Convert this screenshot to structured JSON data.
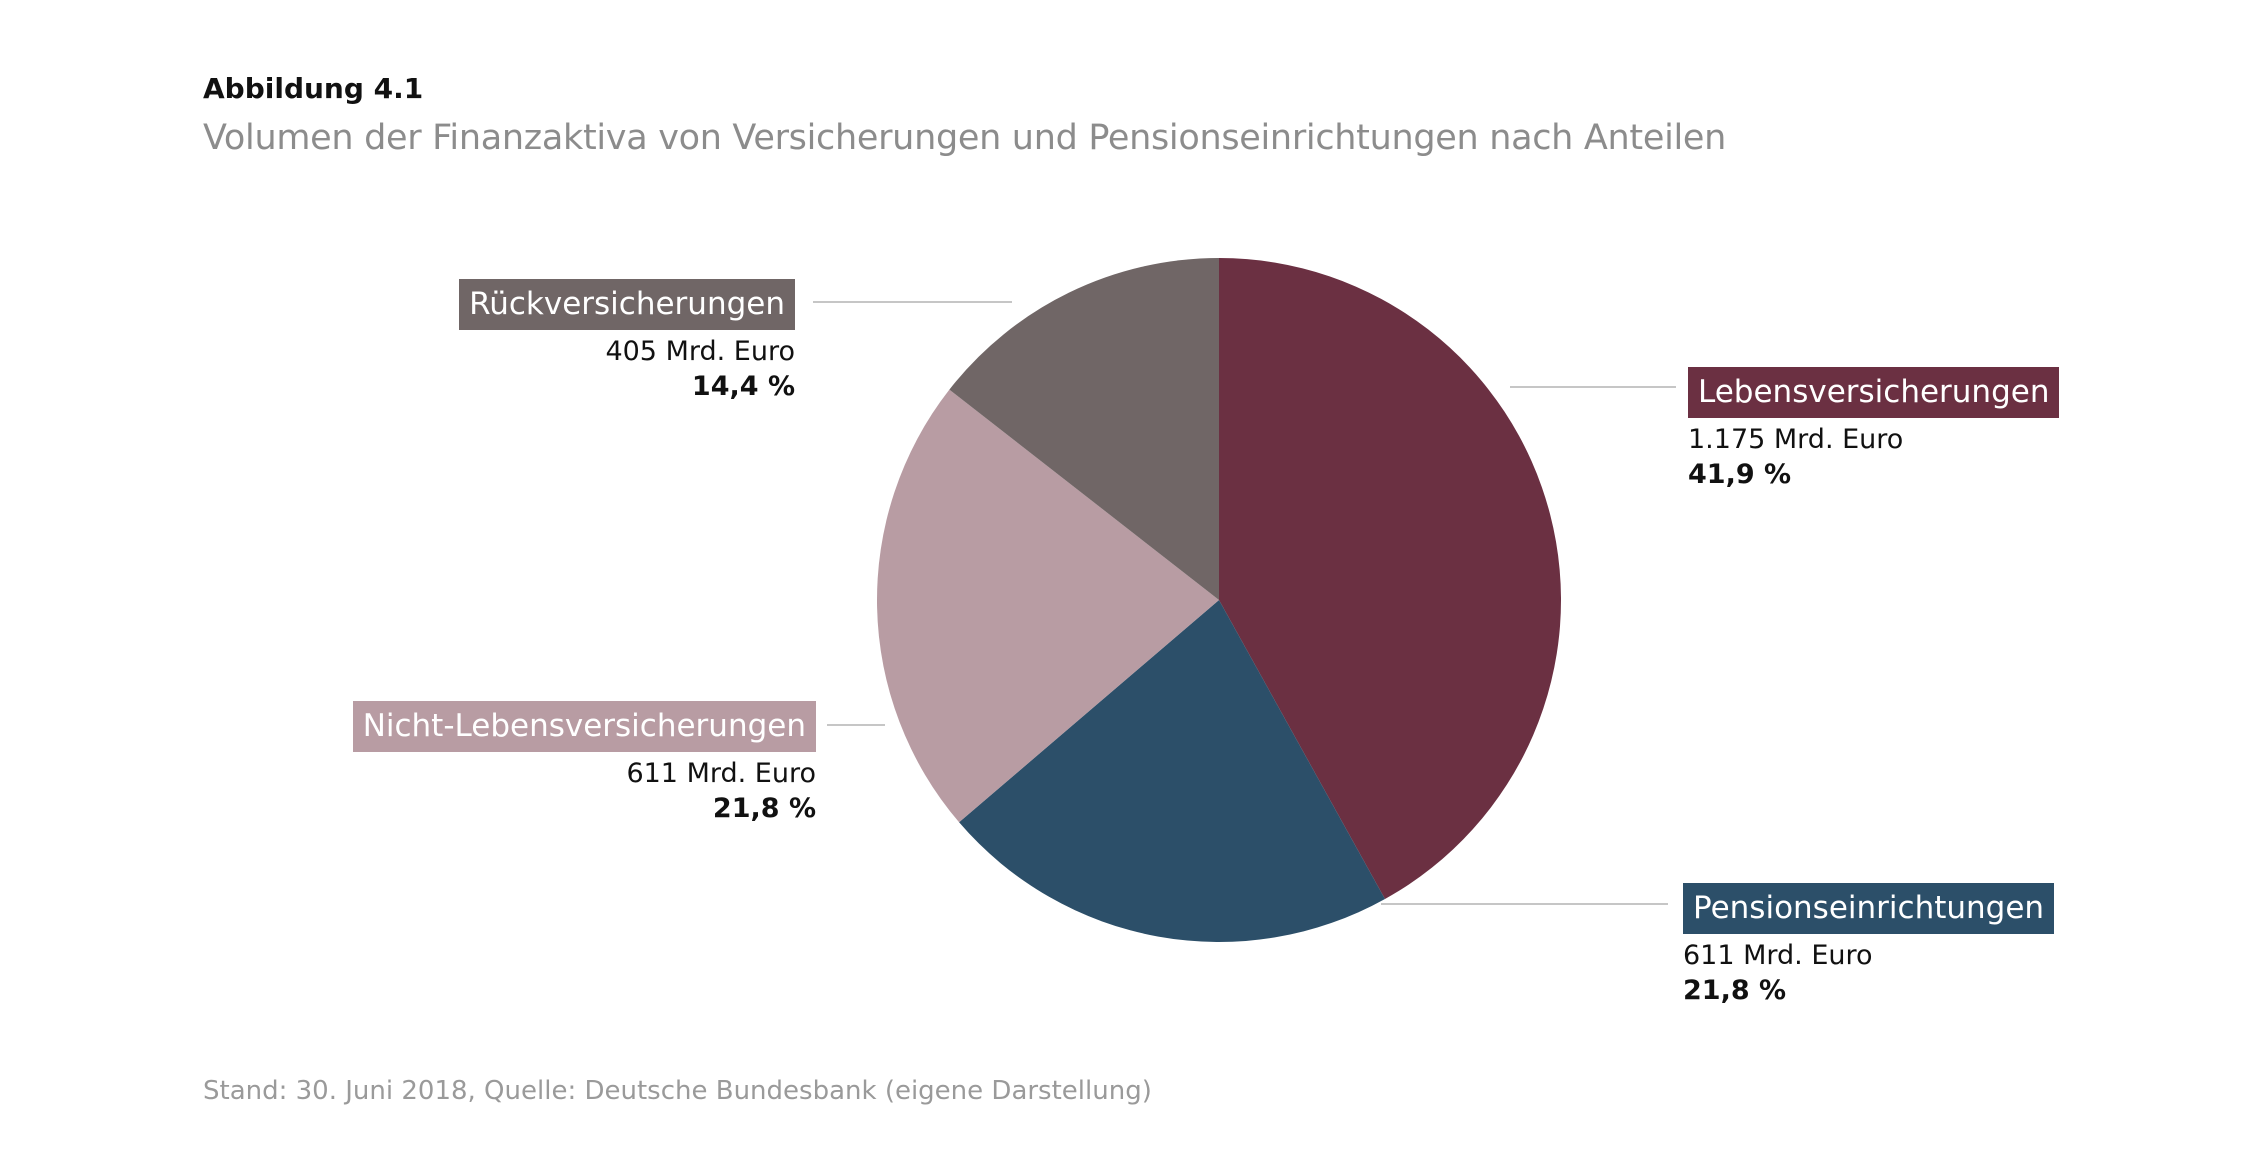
{
  "figure": {
    "number": "Abbildung 4.1",
    "title": "Volumen der Finanzaktiva von Versicherungen und Pensionseinrichtungen nach Anteilen",
    "footer": "Stand: 30. Juni 2018, Quelle: Deutsche Bundesbank (eigene Darstellung)"
  },
  "chart_data": {
    "type": "pie",
    "title": "Volumen der Finanzaktiva von Versicherungen und Pensionseinrichtungen nach Anteilen",
    "slices": [
      {
        "label": "Lebensversicherungen",
        "value": 1175,
        "amount": "1.175 Mrd. Euro",
        "share_label": "41,9 %",
        "share": 41.9,
        "color": "#6b3042"
      },
      {
        "label": "Pensionseinrichtungen",
        "value": 611,
        "amount": "611 Mrd. Euro",
        "share_label": "21,8 %",
        "share": 21.8,
        "color": "#2c4f69"
      },
      {
        "label": "Nicht-Lebensversicherungen",
        "value": 611,
        "amount": "611 Mrd. Euro",
        "share_label": "21,8 %",
        "share": 21.8,
        "color": "#b89ca3"
      },
      {
        "label": "Rückversicherungen",
        "value": 405,
        "amount": "405 Mrd. Euro",
        "share_label": "14,4 %",
        "share": 14.4,
        "color": "#706666"
      }
    ],
    "start": "12 o'clock",
    "direction": "clockwise",
    "legend": "none (direct labels)"
  }
}
